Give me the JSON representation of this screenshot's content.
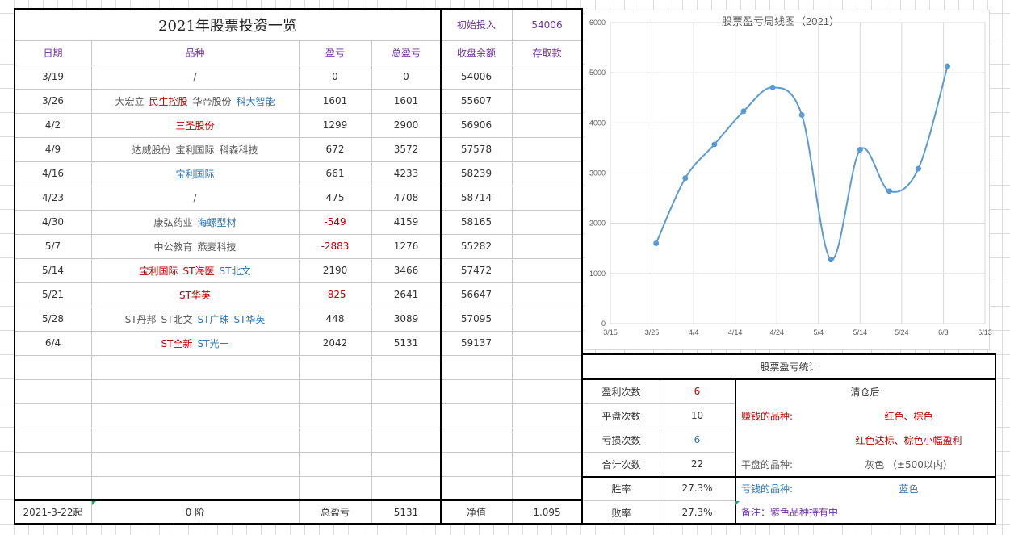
{
  "sheet": {
    "title": "2021年股票投资一览",
    "initial_label": "初始投入",
    "initial_value": "54006",
    "headers": [
      "日期",
      "品种",
      "盈亏",
      "总盈亏",
      "收盘余额",
      "存取款"
    ],
    "rows": [
      {
        "date": "3/19",
        "stocks": [
          {
            "name": "/",
            "color": "gray"
          }
        ],
        "pl": "0",
        "pl_color": "normal",
        "total": "0",
        "balance": "54006"
      },
      {
        "date": "3/26",
        "stocks": [
          {
            "name": "大宏立",
            "color": "gray"
          },
          {
            "name": "民生控股",
            "color": "red"
          },
          {
            "name": "华帝股份",
            "color": "gray"
          },
          {
            "name": "科大智能",
            "color": "blue"
          }
        ],
        "pl": "1601",
        "pl_color": "normal",
        "total": "1601",
        "balance": "55607"
      },
      {
        "date": "4/2",
        "stocks": [
          {
            "name": "三圣股份",
            "color": "red"
          }
        ],
        "pl": "1299",
        "pl_color": "normal",
        "total": "2900",
        "balance": "56906"
      },
      {
        "date": "4/9",
        "stocks": [
          {
            "name": "达威股份",
            "color": "gray"
          },
          {
            "name": "宝利国际",
            "color": "gray"
          },
          {
            "name": "科森科技",
            "color": "gray"
          }
        ],
        "pl": "672",
        "pl_color": "normal",
        "total": "3572",
        "balance": "57578"
      },
      {
        "date": "4/16",
        "stocks": [
          {
            "name": "宝利国际",
            "color": "blue"
          }
        ],
        "pl": "661",
        "pl_color": "normal",
        "total": "4233",
        "balance": "58239"
      },
      {
        "date": "4/23",
        "stocks": [
          {
            "name": "/",
            "color": "gray"
          }
        ],
        "pl": "475",
        "pl_color": "normal",
        "total": "4708",
        "balance": "58714"
      },
      {
        "date": "4/30",
        "stocks": [
          {
            "name": "康弘药业",
            "color": "gray"
          },
          {
            "name": "海螺型材",
            "color": "blue"
          }
        ],
        "pl": "-549",
        "pl_color": "red",
        "total": "4159",
        "balance": "58165"
      },
      {
        "date": "5/7",
        "stocks": [
          {
            "name": "中公教育",
            "color": "gray"
          },
          {
            "name": "燕麦科技",
            "color": "gray"
          }
        ],
        "pl": "-2883",
        "pl_color": "red",
        "total": "1276",
        "balance": "55282"
      },
      {
        "date": "5/14",
        "stocks": [
          {
            "name": "宝利国际",
            "color": "red"
          },
          {
            "name": "ST海医",
            "color": "red"
          },
          {
            "name": "ST北文",
            "color": "blue"
          }
        ],
        "pl": "2190",
        "pl_color": "normal",
        "total": "3466",
        "balance": "57472"
      },
      {
        "date": "5/21",
        "stocks": [
          {
            "name": "ST华英",
            "color": "red"
          }
        ],
        "pl": "-825",
        "pl_color": "red",
        "total": "2641",
        "balance": "56647"
      },
      {
        "date": "5/28",
        "stocks": [
          {
            "name": "ST丹邦",
            "color": "gray"
          },
          {
            "name": "ST北文",
            "color": "gray"
          },
          {
            "name": "ST广珠",
            "color": "blue"
          },
          {
            "name": "ST华英",
            "color": "blue"
          }
        ],
        "pl": "448",
        "pl_color": "normal",
        "total": "3089",
        "balance": "57095"
      },
      {
        "date": "6/4",
        "stocks": [
          {
            "name": "ST全新",
            "color": "red"
          },
          {
            "name": "ST光一",
            "color": "blue"
          }
        ],
        "pl": "2042",
        "pl_color": "normal",
        "total": "5131",
        "balance": "59137"
      }
    ],
    "footer": {
      "start": "2021-3-22起",
      "stage": "0 阶",
      "total_label": "总盈亏",
      "total_value": "5131",
      "net_label": "净值",
      "net_value": "1.095"
    }
  },
  "stats": {
    "title": "股票盈亏统计",
    "rows": [
      {
        "label": "盈利次数",
        "value": "6",
        "color": "red"
      },
      {
        "label": "平盘次数",
        "value": "10",
        "color": "normal"
      },
      {
        "label": "亏损次数",
        "value": "6",
        "color": "blue"
      },
      {
        "label": "合计次数",
        "value": "22",
        "color": "normal"
      },
      {
        "label": "胜率",
        "value": "27.3%",
        "color": "normal"
      },
      {
        "label": "败率",
        "value": "27.3%",
        "color": "normal"
      }
    ],
    "legend": {
      "header": "清仓后",
      "profit_label": "赚钱的品种:",
      "profit_value": "红色、棕色",
      "profit_value2": "红色达标、棕色小幅盈利",
      "flat_label": "平盘的品种:",
      "flat_value": "灰色 （±500以内）",
      "loss_label": "亏钱的品种:",
      "loss_value": "蓝色",
      "note": "备注：紫色品种持有中"
    }
  },
  "colors": {
    "red": "#c00000",
    "blue": "#2e75b6",
    "gray": "#595959",
    "purple": "#7030a0",
    "line": "#5b9bd5"
  },
  "chart_data": {
    "type": "line",
    "title": "股票盈亏周线图（2021）",
    "x_ticks": [
      "3/15",
      "3/25",
      "4/4",
      "4/14",
      "4/24",
      "5/4",
      "5/14",
      "5/24",
      "6/3",
      "6/13"
    ],
    "y_ticks": [
      "0",
      "1000",
      "2000",
      "3000",
      "4000",
      "5000",
      "6000"
    ],
    "ylim": [
      0,
      6000
    ],
    "x": [
      "3/26",
      "4/2",
      "4/9",
      "4/16",
      "4/23",
      "4/30",
      "5/7",
      "5/14",
      "5/21",
      "5/28",
      "6/4"
    ],
    "values": [
      1601,
      2900,
      3572,
      4233,
      4708,
      4159,
      1276,
      3466,
      2641,
      3089,
      5131
    ],
    "smooth": true,
    "grid": true
  }
}
